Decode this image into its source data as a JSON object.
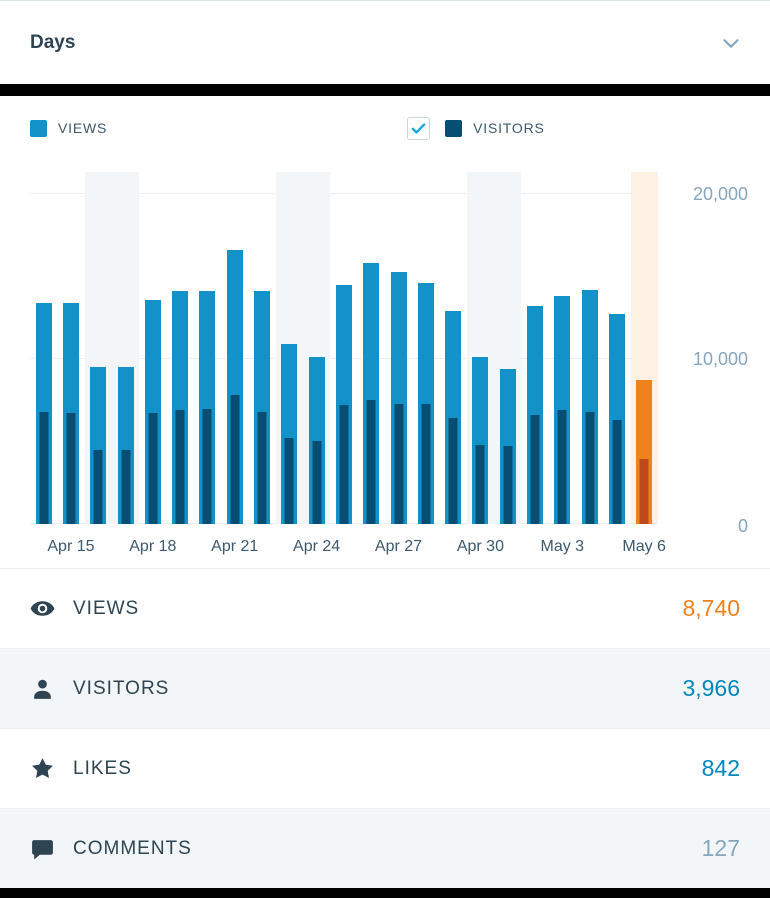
{
  "header": {
    "title": "Days"
  },
  "legend": {
    "views_label": "VIEWS",
    "visitors_label": "VISITORS",
    "visitors_checked": true
  },
  "chart_data": {
    "type": "bar",
    "title": "Days",
    "ylim": [
      0,
      20000
    ],
    "yticks": [
      0,
      10000,
      20000
    ],
    "ytick_labels": [
      "0",
      "10,000",
      "20,000"
    ],
    "xtick_labels": [
      "Apr 15",
      "Apr 18",
      "Apr 21",
      "Apr 24",
      "Apr 27",
      "Apr 30",
      "May 3",
      "May 6"
    ],
    "legend_position": "top",
    "grid": true,
    "series_names": [
      "Views",
      "Visitors"
    ],
    "days": [
      {
        "date": "Apr 14",
        "views": 13400,
        "visitors": 6800,
        "weekend": false,
        "selected": false,
        "show_label": false
      },
      {
        "date": "Apr 15",
        "views": 13400,
        "visitors": 6700,
        "weekend": false,
        "selected": false,
        "show_label": true
      },
      {
        "date": "Apr 16",
        "views": 9500,
        "visitors": 4500,
        "weekend": true,
        "selected": false,
        "show_label": false
      },
      {
        "date": "Apr 17",
        "views": 9500,
        "visitors": 4500,
        "weekend": true,
        "selected": false,
        "show_label": false
      },
      {
        "date": "Apr 18",
        "views": 13600,
        "visitors": 6700,
        "weekend": false,
        "selected": false,
        "show_label": true
      },
      {
        "date": "Apr 19",
        "views": 14100,
        "visitors": 6900,
        "weekend": false,
        "selected": false,
        "show_label": false
      },
      {
        "date": "Apr 20",
        "views": 14100,
        "visitors": 7000,
        "weekend": false,
        "selected": false,
        "show_label": false
      },
      {
        "date": "Apr 21",
        "views": 16600,
        "visitors": 7800,
        "weekend": false,
        "selected": false,
        "show_label": true
      },
      {
        "date": "Apr 22",
        "views": 14100,
        "visitors": 6800,
        "weekend": false,
        "selected": false,
        "show_label": false
      },
      {
        "date": "Apr 23",
        "views": 10900,
        "visitors": 5200,
        "weekend": true,
        "selected": false,
        "show_label": false
      },
      {
        "date": "Apr 24",
        "views": 10100,
        "visitors": 5000,
        "weekend": true,
        "selected": false,
        "show_label": true
      },
      {
        "date": "Apr 25",
        "views": 14500,
        "visitors": 7200,
        "weekend": false,
        "selected": false,
        "show_label": false
      },
      {
        "date": "Apr 26",
        "views": 15800,
        "visitors": 7500,
        "weekend": false,
        "selected": false,
        "show_label": false
      },
      {
        "date": "Apr 27",
        "views": 15300,
        "visitors": 7300,
        "weekend": false,
        "selected": false,
        "show_label": true
      },
      {
        "date": "Apr 28",
        "views": 14600,
        "visitors": 7300,
        "weekend": false,
        "selected": false,
        "show_label": false
      },
      {
        "date": "Apr 29",
        "views": 12900,
        "visitors": 6400,
        "weekend": false,
        "selected": false,
        "show_label": false
      },
      {
        "date": "Apr 30",
        "views": 10100,
        "visitors": 4800,
        "weekend": true,
        "selected": false,
        "show_label": true
      },
      {
        "date": "May 1",
        "views": 9400,
        "visitors": 4700,
        "weekend": true,
        "selected": false,
        "show_label": false
      },
      {
        "date": "May 2",
        "views": 13200,
        "visitors": 6600,
        "weekend": false,
        "selected": false,
        "show_label": false
      },
      {
        "date": "May 3",
        "views": 13800,
        "visitors": 6900,
        "weekend": false,
        "selected": false,
        "show_label": true
      },
      {
        "date": "May 4",
        "views": 14200,
        "visitors": 6800,
        "weekend": false,
        "selected": false,
        "show_label": false
      },
      {
        "date": "May 5",
        "views": 12700,
        "visitors": 6300,
        "weekend": false,
        "selected": false,
        "show_label": false
      },
      {
        "date": "May 6",
        "views": 8740,
        "visitors": 3966,
        "weekend": false,
        "selected": true,
        "show_label": true
      }
    ]
  },
  "stats": [
    {
      "label": "VIEWS",
      "value": "8,740",
      "icon": "eye-icon",
      "value_color": "orange"
    },
    {
      "label": "VISITORS",
      "value": "3,966",
      "icon": "person-icon",
      "value_color": "blue"
    },
    {
      "label": "LIKES",
      "value": "842",
      "icon": "star-icon",
      "value_color": "blue"
    },
    {
      "label": "COMMENTS",
      "value": "127",
      "icon": "comment-icon",
      "value_color": "gray"
    }
  ],
  "colors": {
    "views": "#1292c8",
    "visitors": "#084e72",
    "selected_views": "#f0821e",
    "selected_visitors": "#bc4a1c",
    "weekend_band": "#f3f6f8",
    "selected_band": "#fcf1e3",
    "grid": "#e9eff3",
    "axis_label": "#87a6bc",
    "x_label": "#3d596d",
    "text_dark": "#2e4453",
    "value_orange": "#f0821e",
    "value_blue": "#0087be",
    "value_gray": "#87a6bc",
    "row_alt": "#f3f6f8",
    "border": "#e9eff3",
    "check": "#00aadc",
    "checkbox_border": "#c8d7e1",
    "black_bar": "#000000"
  }
}
